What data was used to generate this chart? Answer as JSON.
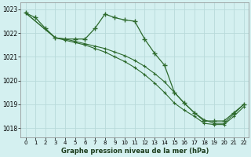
{
  "title": "Graphe pression niveau de la mer (hPa)",
  "background_color": "#d4f0f0",
  "grid_color": "#b8dada",
  "line_color": "#2d6a2d",
  "xlim": [
    -0.5,
    22.5
  ],
  "ylim": [
    1017.6,
    1023.3
  ],
  "yticks": [
    1018,
    1019,
    1020,
    1021,
    1022,
    1023
  ],
  "xticks": [
    0,
    1,
    2,
    3,
    4,
    5,
    6,
    7,
    8,
    9,
    10,
    11,
    12,
    13,
    14,
    15,
    16,
    17,
    18,
    19,
    20,
    21,
    22
  ],
  "series1": {
    "x": [
      0,
      1,
      2,
      3,
      4,
      5,
      6,
      7,
      8,
      9,
      10,
      11,
      12,
      13,
      14,
      15,
      16,
      17,
      18,
      19,
      20,
      21,
      22
    ],
    "y": [
      1022.85,
      1022.65,
      1022.2,
      1021.8,
      1021.75,
      1021.75,
      1021.75,
      1022.2,
      1022.8,
      1022.65,
      1022.55,
      1022.5,
      1021.75,
      1021.15,
      1020.65,
      1019.5,
      1019.05,
      1018.65,
      1018.3,
      1018.3,
      1018.3,
      1018.65,
      1019.0
    ]
  },
  "series2": {
    "x": [
      0,
      3,
      4,
      5,
      6,
      7,
      8,
      9,
      10,
      11,
      12,
      13,
      14,
      15,
      16,
      17,
      18,
      19,
      20,
      21,
      22
    ],
    "y": [
      1022.85,
      1021.8,
      1021.75,
      1021.65,
      1021.55,
      1021.45,
      1021.35,
      1021.2,
      1021.05,
      1020.85,
      1020.6,
      1020.3,
      1019.95,
      1019.5,
      1019.05,
      1018.65,
      1018.35,
      1018.2,
      1018.2,
      1018.6,
      1019.0
    ]
  },
  "series3": {
    "x": [
      0,
      3,
      4,
      5,
      6,
      7,
      8,
      9,
      10,
      11,
      12,
      13,
      14,
      15,
      16,
      17,
      18,
      19,
      20,
      21,
      22
    ],
    "y": [
      1022.85,
      1021.8,
      1021.7,
      1021.6,
      1021.5,
      1021.35,
      1021.2,
      1021.0,
      1020.8,
      1020.55,
      1020.25,
      1019.9,
      1019.5,
      1019.05,
      1018.75,
      1018.5,
      1018.2,
      1018.15,
      1018.15,
      1018.5,
      1018.9
    ]
  }
}
